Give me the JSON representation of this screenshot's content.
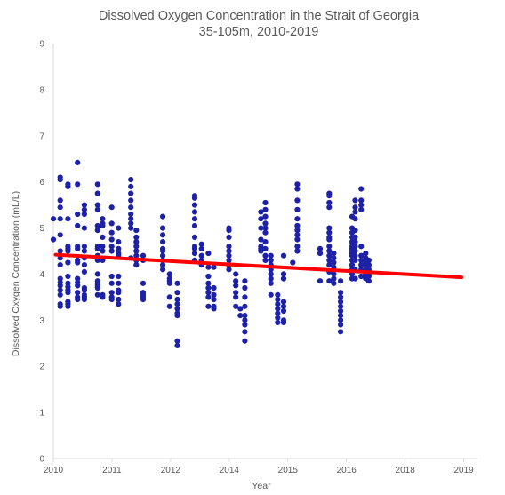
{
  "chart_data": {
    "type": "scatter",
    "title": "Dissolved Oxygen Concentration in the Strait of Georgia",
    "subtitle": "35-105m, 2010-2019",
    "xlabel": "Year",
    "ylabel": "Dissolved Oxygen Concentration (mL/L)",
    "xlim": [
      2010,
      2019.3
    ],
    "ylim": [
      0,
      9
    ],
    "x_ticks": [
      2010,
      2011,
      2012,
      2014,
      2015,
      2016,
      2018,
      2019
    ],
    "y_ticks": [
      0,
      1,
      2,
      3,
      4,
      5,
      6,
      7,
      8,
      9
    ],
    "grid": false,
    "legend": "none",
    "colors": {
      "points": "#1c21a8",
      "trend": "#ff0000",
      "axis": "#d9d9d9",
      "text": "#595959"
    },
    "trend": {
      "x": [
        2010.05,
        2018.95
      ],
      "y": [
        4.42,
        3.93
      ]
    },
    "samples": [
      {
        "x": 2010.0,
        "y": [
          5.2,
          4.75
        ]
      },
      {
        "x": 2010.15,
        "y": [
          6.1,
          6.05,
          5.6,
          5.45,
          5.2,
          4.85,
          4.5,
          4.35,
          4.2,
          3.9,
          3.82,
          3.75,
          3.65,
          3.55,
          3.35,
          3.3
        ]
      },
      {
        "x": 2010.32,
        "y": [
          5.95,
          5.9,
          5.2,
          4.6,
          4.55,
          4.5,
          4.25,
          3.95,
          3.8,
          3.72,
          3.65,
          3.6,
          3.4,
          3.35,
          3.3
        ]
      },
      {
        "x": 2010.53,
        "y": [
          6.42,
          5.95,
          5.3,
          5.05,
          4.6,
          4.55,
          4.3,
          4.25,
          3.9,
          3.82,
          3.75,
          3.6,
          3.5,
          3.45
        ]
      },
      {
        "x": 2010.68,
        "y": [
          5.5,
          5.4,
          5.3,
          5.0,
          4.6,
          4.5,
          4.35,
          4.2,
          4.05,
          3.7,
          3.65,
          3.55,
          3.5,
          3.45
        ]
      },
      {
        "x": 2010.97,
        "y": [
          5.95,
          5.75,
          5.5,
          5.4,
          5.05,
          4.95,
          4.6,
          4.55,
          4.4,
          4.3,
          4.0,
          3.85,
          3.8,
          3.75,
          3.7,
          3.55
        ]
      },
      {
        "x": 2011.08,
        "y": [
          5.2,
          5.1,
          5.05,
          4.8,
          4.6,
          4.5,
          4.3,
          3.55,
          3.5
        ]
      },
      {
        "x": 2011.28,
        "y": [
          5.45,
          5.1,
          4.9,
          4.75,
          4.6,
          4.5,
          3.95,
          3.8,
          3.6,
          3.5,
          3.45
        ]
      },
      {
        "x": 2011.43,
        "y": [
          5.0,
          4.7,
          4.55,
          4.45,
          4.4,
          3.95,
          3.8,
          3.65,
          3.6,
          3.45,
          3.35
        ]
      },
      {
        "x": 2011.7,
        "y": [
          6.05,
          5.9,
          5.75,
          5.6,
          5.45,
          5.3,
          5.2,
          5.1,
          5.0,
          4.35
        ]
      },
      {
        "x": 2011.82,
        "y": [
          4.95,
          4.8,
          4.7,
          4.6,
          4.5,
          4.4,
          4.3,
          4.2
        ]
      },
      {
        "x": 2011.97,
        "y": [
          4.4,
          4.3,
          3.8,
          3.6,
          3.55,
          3.5,
          3.45
        ]
      },
      {
        "x": 2012.4,
        "y": [
          5.25,
          5.0,
          4.85,
          4.7,
          4.55,
          4.5,
          4.4,
          4.3,
          4.2,
          4.1
        ]
      },
      {
        "x": 2012.55,
        "y": [
          4.0,
          3.9,
          3.85,
          3.8,
          3.5,
          3.3
        ]
      },
      {
        "x": 2012.72,
        "y": [
          3.8,
          3.6,
          3.45,
          3.35,
          3.25,
          3.15,
          3.1,
          2.55,
          2.45
        ]
      },
      {
        "x": 2013.1,
        "y": [
          5.7,
          5.65,
          5.5,
          5.35,
          5.2,
          5.05,
          4.8,
          4.6,
          4.55,
          4.45,
          4.3
        ]
      },
      {
        "x": 2013.25,
        "y": [
          4.65,
          4.55,
          4.4,
          4.3,
          4.2
        ]
      },
      {
        "x": 2013.4,
        "y": [
          4.45,
          4.15,
          3.95,
          3.8,
          3.7,
          3.6,
          3.5,
          3.3
        ]
      },
      {
        "x": 2013.52,
        "y": [
          4.15,
          3.7,
          3.55,
          3.45,
          3.3,
          3.25
        ]
      },
      {
        "x": 2013.85,
        "y": [
          5.0,
          4.95,
          4.8,
          4.6,
          4.5,
          4.4,
          4.3,
          4.2,
          4.1
        ]
      },
      {
        "x": 2014.0,
        "y": [
          4.0,
          3.85,
          3.75,
          3.6,
          3.5,
          3.3
        ]
      },
      {
        "x": 2014.1,
        "y": [
          3.25,
          3.1
        ]
      },
      {
        "x": 2014.2,
        "y": [
          3.85,
          3.7,
          3.5,
          3.3,
          3.1,
          3.0,
          2.9,
          2.75,
          2.55
        ]
      },
      {
        "x": 2014.55,
        "y": [
          5.35,
          5.2,
          5.0,
          4.75,
          4.6,
          4.55,
          4.5
        ]
      },
      {
        "x": 2014.65,
        "y": [
          5.55,
          5.4,
          5.25,
          5.1,
          5.0,
          4.9,
          4.7,
          4.55,
          4.4,
          4.3
        ]
      },
      {
        "x": 2014.77,
        "y": [
          4.4,
          4.3,
          4.2,
          4.1,
          4.0,
          3.9,
          3.8,
          3.55
        ]
      },
      {
        "x": 2014.92,
        "y": [
          3.55,
          3.45,
          3.35,
          3.25,
          3.15,
          3.05,
          2.95
        ]
      },
      {
        "x": 2015.05,
        "y": [
          4.4,
          4.0,
          3.9,
          3.4,
          3.3,
          3.2,
          3.0,
          2.95
        ]
      },
      {
        "x": 2015.25,
        "y": [
          4.25
        ]
      },
      {
        "x": 2015.35,
        "y": [
          5.95,
          5.85,
          5.6,
          5.4,
          5.2,
          5.05,
          4.95,
          4.85,
          4.75,
          4.6,
          4.5
        ]
      },
      {
        "x": 2015.85,
        "y": [
          4.55,
          4.45,
          3.85
        ]
      },
      {
        "x": 2016.05,
        "y": [
          5.75,
          5.7,
          5.55,
          5.45,
          5.0,
          4.9,
          4.8,
          4.75,
          4.6,
          4.5,
          4.4,
          4.3,
          4.2,
          4.05,
          3.85
        ]
      },
      {
        "x": 2016.15,
        "y": [
          4.45,
          4.35,
          4.25,
          4.15,
          4.0,
          3.9,
          3.8
        ]
      },
      {
        "x": 2016.3,
        "y": [
          3.85,
          3.6,
          3.5,
          3.4,
          3.3,
          3.2,
          3.1,
          3.0,
          2.9,
          2.75
        ]
      },
      {
        "x": 2016.55,
        "y": [
          5.25,
          5.0,
          4.9,
          4.8,
          4.7,
          4.6,
          4.55,
          4.5,
          4.45,
          4.4,
          4.3,
          4.2,
          4.1,
          4.0,
          3.9
        ]
      },
      {
        "x": 2016.62,
        "y": [
          5.6,
          5.45,
          5.35,
          5.2,
          4.95,
          4.8,
          4.7,
          4.6,
          4.5,
          4.4,
          4.3,
          4.1,
          3.9
        ]
      },
      {
        "x": 2016.75,
        "y": [
          5.85,
          5.6,
          5.5,
          5.4,
          4.6,
          4.4,
          4.3,
          4.2,
          4.1,
          3.95
        ]
      },
      {
        "x": 2016.85,
        "y": [
          4.45,
          4.35,
          4.3,
          4.25,
          4.2,
          4.1,
          4.0,
          3.95,
          3.9
        ]
      },
      {
        "x": 2016.92,
        "y": [
          4.3,
          4.2,
          4.1,
          4.0,
          3.95,
          3.85
        ]
      }
    ]
  }
}
